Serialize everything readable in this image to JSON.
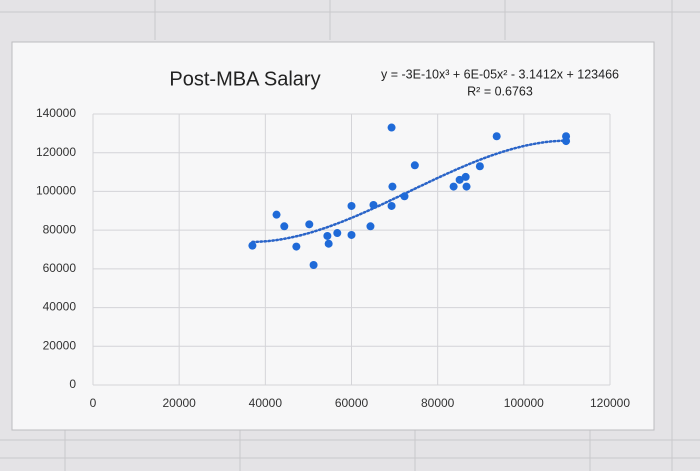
{
  "chart_data": {
    "type": "scatter",
    "title": "Post-MBA Salary",
    "annotations": [
      "y = -3E-10x³ + 6E-05x² - 3.1412x + 123466",
      "R² = 0.6763"
    ],
    "x": [
      37000,
      42600,
      44400,
      47200,
      50200,
      51200,
      54400,
      54700,
      56700,
      60000,
      60000,
      64400,
      65100,
      69300,
      69500,
      69300,
      72300,
      74700,
      83700,
      85100,
      86700,
      86500,
      89800,
      93700,
      109800,
      109800
    ],
    "values": [
      72000,
      88000,
      82000,
      71500,
      83000,
      62000,
      77000,
      73000,
      78500,
      92500,
      77500,
      82000,
      93000,
      133000,
      102500,
      92500,
      97500,
      113500,
      102500,
      106000,
      102500,
      107500,
      113000,
      128500,
      128500,
      126000
    ],
    "color": "#1f6ad8",
    "xlim": [
      0,
      120000
    ],
    "ylim": [
      0,
      140000
    ],
    "xticks": [
      0,
      20000,
      40000,
      60000,
      80000,
      100000,
      120000
    ],
    "yticks": [
      0,
      20000,
      40000,
      60000,
      80000,
      100000,
      120000,
      140000
    ],
    "grid": true,
    "trendline": {
      "degree": 3,
      "color": "#2a64c8",
      "style": "dotted"
    }
  }
}
